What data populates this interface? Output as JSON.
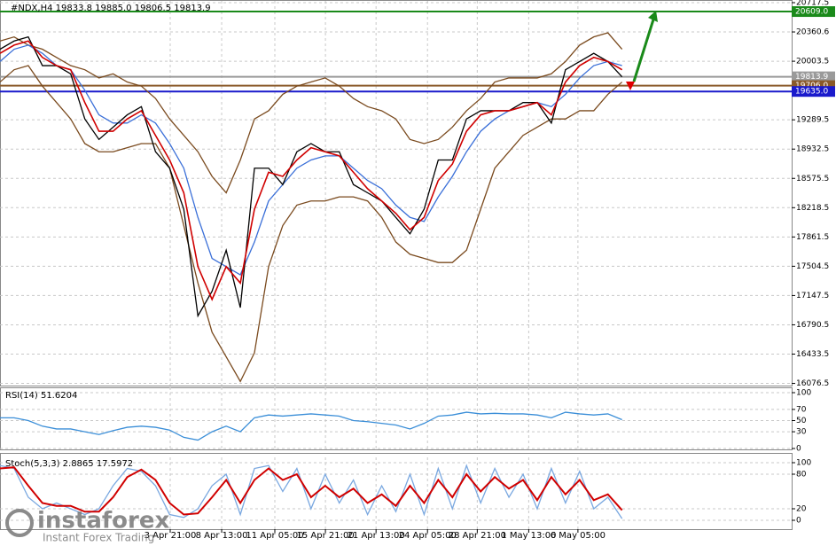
{
  "chart_data": [
    {
      "type": "line",
      "title": "#NDX,H4  19833.8 19885.0 19806.5 19813.9",
      "xlim": [
        0,
        56
      ],
      "ylim": [
        16050,
        20750
      ],
      "yticks": [
        20717.5,
        20360.6,
        20003.5,
        19289.5,
        18932.5,
        18575.5,
        18218.5,
        17861.5,
        17504.5,
        17147.5,
        16790.5,
        16433.5,
        16076.5
      ],
      "grid": true,
      "levels": [
        {
          "value": 20609,
          "label": "20609.0",
          "color": "#1a8a1a"
        },
        {
          "value": 19813.9,
          "label": "19813.9",
          "color": "#9a9a9a"
        },
        {
          "value": 19706,
          "label": "19706.0",
          "color": "#8a5a2a"
        },
        {
          "value": 19635,
          "label": "19635.0",
          "color": "#1a1acc"
        }
      ],
      "series": [
        {
          "name": "upper",
          "color": "#7a4a1e",
          "values": [
            20250,
            20300,
            20200,
            20150,
            20050,
            19950,
            19900,
            19800,
            19850,
            19750,
            19700,
            19550,
            19300,
            19100,
            18900,
            18600,
            18400,
            18800,
            19300,
            19400,
            19600,
            19700,
            19750,
            19800,
            19700,
            19550,
            19450,
            19400,
            19300,
            19050,
            19000,
            19050,
            19200,
            19400,
            19550,
            19750,
            19800,
            19800,
            19800,
            19850,
            20000,
            20200,
            20300,
            20350,
            20150
          ]
        },
        {
          "name": "lower",
          "color": "#7a4a1e",
          "values": [
            19750,
            19900,
            19950,
            19700,
            19500,
            19300,
            19000,
            18900,
            18900,
            18950,
            19000,
            19000,
            18700,
            18000,
            17300,
            16700,
            16400,
            16100,
            16450,
            17500,
            18000,
            18250,
            18300,
            18300,
            18350,
            18350,
            18300,
            18100,
            17800,
            17650,
            17600,
            17550,
            17550,
            17700,
            18200,
            18700,
            18900,
            19100,
            19200,
            19300,
            19300,
            19400,
            19400,
            19600,
            19750
          ]
        },
        {
          "name": "slow",
          "color": "#3a6fd8",
          "values": [
            20000,
            20150,
            20200,
            20100,
            19950,
            19900,
            19650,
            19350,
            19250,
            19250,
            19350,
            19250,
            19000,
            18700,
            18100,
            17600,
            17500,
            17400,
            17800,
            18300,
            18500,
            18700,
            18800,
            18850,
            18850,
            18700,
            18550,
            18450,
            18250,
            18100,
            18050,
            18350,
            18600,
            18900,
            19150,
            19300,
            19400,
            19450,
            19500,
            19450,
            19600,
            19800,
            19950,
            20000,
            19950
          ]
        },
        {
          "name": "close",
          "color": "#000000",
          "values": [
            20150,
            20250,
            20300,
            19950,
            19950,
            19850,
            19300,
            19050,
            19200,
            19350,
            19450,
            18900,
            18700,
            18200,
            16900,
            17200,
            17700,
            17000,
            18700,
            18700,
            18500,
            18900,
            19000,
            18900,
            18900,
            18500,
            18400,
            18300,
            18100,
            17900,
            18200,
            18800,
            18800,
            19300,
            19400,
            19400,
            19400,
            19500,
            19500,
            19250,
            19900,
            20000,
            20100,
            20000,
            19813.9
          ]
        },
        {
          "name": "fast",
          "color": "#d00000",
          "values": [
            20100,
            20200,
            20250,
            20050,
            19950,
            19900,
            19500,
            19150,
            19150,
            19300,
            19400,
            19100,
            18800,
            18400,
            17500,
            17100,
            17500,
            17300,
            18200,
            18650,
            18600,
            18800,
            18950,
            18900,
            18850,
            18650,
            18450,
            18300,
            18150,
            17950,
            18100,
            18550,
            18750,
            19150,
            19350,
            19400,
            19400,
            19450,
            19500,
            19350,
            19750,
            19950,
            20050,
            20000,
            19900
          ]
        }
      ]
    },
    {
      "type": "line",
      "title": "RSI(14) 51.6204",
      "xlim": [
        0,
        56
      ],
      "ylim": [
        0,
        100
      ],
      "yticks": [
        100,
        70,
        50,
        30,
        0
      ],
      "grid": true,
      "series": [
        {
          "name": "rsi",
          "color": "#3a8ed8",
          "values": [
            55,
            55,
            50,
            40,
            35,
            35,
            30,
            25,
            32,
            38,
            40,
            38,
            33,
            20,
            15,
            30,
            40,
            30,
            55,
            60,
            58,
            60,
            62,
            60,
            58,
            50,
            48,
            45,
            42,
            35,
            45,
            58,
            60,
            65,
            62,
            63,
            62,
            62,
            60,
            55,
            65,
            62,
            60,
            62,
            51.6204
          ]
        }
      ]
    },
    {
      "type": "line",
      "title": "Stoch(5,3,3) 2.8865 17.5972",
      "xlim": [
        0,
        56
      ],
      "ylim": [
        0,
        100
      ],
      "yticks": [
        100,
        80,
        20,
        0
      ],
      "grid": true,
      "xticks": [
        {
          "value": 12.04,
          "label": "3 Apr 21:00"
        },
        {
          "value": 15.68,
          "label": "8 Apr 13:00"
        },
        {
          "value": 19.44,
          "label": "11 Apr 05:00"
        },
        {
          "value": 23.02,
          "label": "15 Apr 21:00"
        },
        {
          "value": 26.6,
          "label": "21 Apr 13:00"
        },
        {
          "value": 30.24,
          "label": "24 Apr 05:00"
        },
        {
          "value": 33.76,
          "label": "28 Apr 21:00"
        },
        {
          "value": 37.4,
          "label": "1 May 13:00"
        },
        {
          "value": 40.88,
          "label": "6 May 05:00"
        }
      ],
      "series": [
        {
          "name": "main",
          "color": "#7aa8e0",
          "values": [
            95,
            90,
            40,
            20,
            30,
            20,
            10,
            20,
            60,
            90,
            85,
            60,
            10,
            5,
            20,
            60,
            80,
            10,
            90,
            95,
            50,
            90,
            20,
            80,
            30,
            70,
            10,
            60,
            15,
            80,
            10,
            90,
            20,
            95,
            30,
            90,
            40,
            80,
            20,
            90,
            30,
            85,
            20,
            40,
            2.8865
          ]
        },
        {
          "name": "signal",
          "color": "#d00000",
          "values": [
            90,
            92,
            60,
            30,
            25,
            25,
            15,
            15,
            40,
            75,
            88,
            70,
            30,
            10,
            12,
            40,
            70,
            30,
            70,
            90,
            70,
            80,
            40,
            60,
            40,
            55,
            30,
            45,
            25,
            60,
            30,
            70,
            40,
            80,
            50,
            75,
            55,
            70,
            35,
            75,
            45,
            70,
            35,
            45,
            17.5972
          ]
        }
      ]
    }
  ],
  "watermark": {
    "brand": "instaforex",
    "tagline": "Instant Forex Trading"
  }
}
